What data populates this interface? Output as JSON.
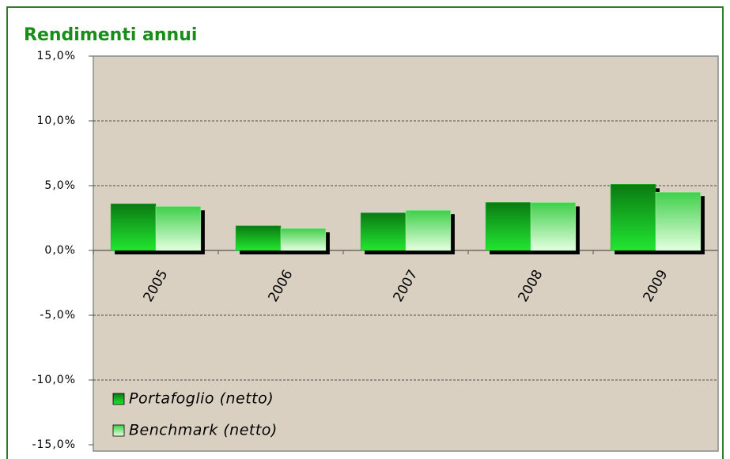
{
  "chart_data": {
    "type": "bar",
    "title": "Rendimenti annui",
    "categories": [
      "2005",
      "2006",
      "2007",
      "2008",
      "2009"
    ],
    "series": [
      {
        "name": "Portafoglio (netto)",
        "color": "#0fb81f",
        "values": [
          3.6,
          1.9,
          2.9,
          3.7,
          5.1
        ]
      },
      {
        "name": "Benchmark (netto)",
        "color": "#b8f5b0",
        "values": [
          3.4,
          1.7,
          3.1,
          3.7,
          4.5
        ]
      }
    ],
    "ylim": [
      -15,
      15
    ],
    "yticks": [
      {
        "value": 15,
        "label": "15,0%"
      },
      {
        "value": 10,
        "label": "10,0%"
      },
      {
        "value": 5,
        "label": "5,0%"
      },
      {
        "value": 0,
        "label": "0,0%"
      },
      {
        "value": -5,
        "label": "-5,0%"
      },
      {
        "value": -10,
        "label": "-10,0%"
      },
      {
        "value": -15,
        "label": "-15,0%"
      }
    ],
    "grid": true,
    "legend": "lower left"
  }
}
